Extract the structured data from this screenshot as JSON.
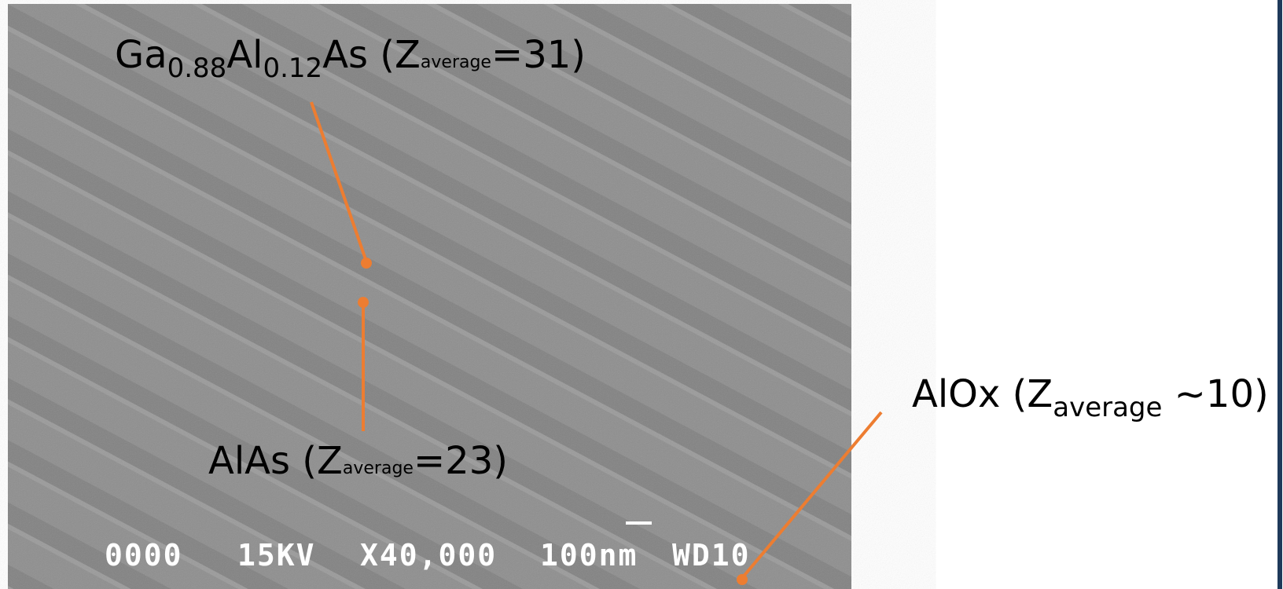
{
  "labels": {
    "gaalas": {
      "el1": "Ga",
      "sub1": "0.88",
      "el2": "Al",
      "sub2": "0.12",
      "rest": "As (Z",
      "sub3": "average",
      "end": "=31)"
    },
    "alas": {
      "start": "AlAs (Z",
      "sub": "average",
      "end": "=23)"
    },
    "alox": {
      "start": "AlOx (Z",
      "sub": "average",
      "end": " ~10)"
    }
  },
  "sem_info": {
    "id": "0000",
    "voltage": "15KV",
    "magnification": "X40,000",
    "scale": "100nm",
    "working_distance": "WD10"
  }
}
